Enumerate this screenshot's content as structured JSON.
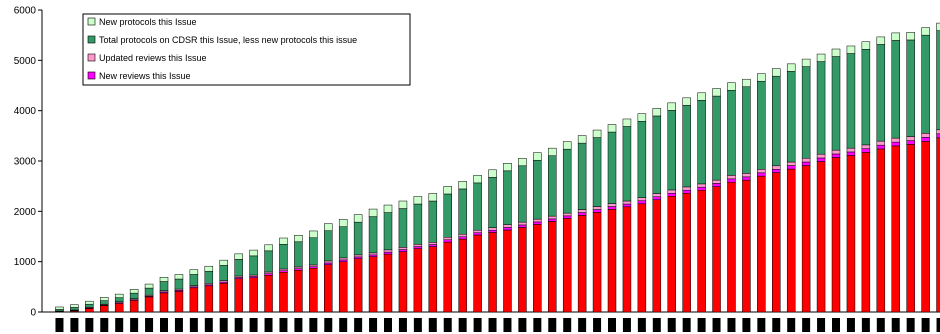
{
  "chart_data": {
    "type": "bar",
    "stacked": true,
    "title": "",
    "xlabel": "",
    "ylabel": "",
    "ylim": [
      0,
      6000
    ],
    "yticks": [
      0,
      1000,
      2000,
      3000,
      4000,
      5000,
      6000
    ],
    "grid": false,
    "legend_position": "top-left",
    "num_categories": 60,
    "series": [
      {
        "name": "New reviews this Issue",
        "color": "#ff00ff",
        "values": [
          10,
          10,
          10,
          10,
          15,
          15,
          15,
          20,
          20,
          20,
          20,
          25,
          25,
          25,
          30,
          30,
          30,
          30,
          35,
          35,
          35,
          35,
          40,
          40,
          40,
          40,
          45,
          45,
          45,
          45,
          50,
          50,
          50,
          50,
          50,
          55,
          55,
          55,
          55,
          60,
          60,
          60,
          60,
          60,
          65,
          65,
          65,
          65,
          65,
          70,
          70,
          70,
          70,
          70,
          75,
          75,
          75,
          75,
          80,
          80
        ]
      },
      {
        "name": "Updated reviews this Issue",
        "color": "#ff99cc",
        "values": [
          10,
          10,
          15,
          15,
          20,
          20,
          20,
          25,
          25,
          25,
          30,
          30,
          30,
          30,
          35,
          35,
          35,
          35,
          40,
          40,
          40,
          40,
          45,
          45,
          45,
          45,
          50,
          50,
          50,
          50,
          55,
          55,
          55,
          55,
          55,
          60,
          60,
          60,
          60,
          60,
          65,
          65,
          65,
          65,
          65,
          70,
          70,
          70,
          70,
          70,
          75,
          75,
          75,
          75,
          75,
          80,
          80,
          80,
          80,
          80
        ]
      },
      {
        "name": "Total protocols on CDSR this Issue, less new protocols this issue",
        "color": "#339966",
        "values": [
          30,
          50,
          60,
          70,
          80,
          110,
          140,
          180,
          200,
          220,
          240,
          300,
          330,
          380,
          420,
          490,
          500,
          540,
          600,
          620,
          650,
          720,
          740,
          770,
          800,
          820,
          860,
          900,
          940,
          1000,
          1070,
          1120,
          1170,
          1200,
          1270,
          1320,
          1370,
          1420,
          1480,
          1520,
          1540,
          1580,
          1620,
          1660,
          1670,
          1690,
          1720,
          1750,
          1780,
          1800,
          1820,
          1840,
          1860,
          1880,
          1900,
          1920,
          1940,
          1920,
          1950,
          1970
        ]
      },
      {
        "name": "New protocols this Issue",
        "color": "#ccffcc",
        "values": [
          50,
          55,
          60,
          65,
          70,
          75,
          80,
          85,
          90,
          95,
          100,
          105,
          110,
          115,
          120,
          125,
          130,
          135,
          140,
          145,
          150,
          150,
          150,
          150,
          150,
          150,
          150,
          150,
          150,
          150,
          150,
          150,
          150,
          150,
          150,
          150,
          150,
          150,
          150,
          150,
          150,
          150,
          150,
          150,
          150,
          150,
          150,
          150,
          150,
          150,
          150,
          150,
          150,
          150,
          150,
          150,
          150,
          150,
          150,
          150
        ]
      },
      {
        "name": "",
        "color": "#ff0000",
        "values": [
          0,
          20,
          70,
          130,
          170,
          230,
          300,
          380,
          410,
          480,
          520,
          570,
          660,
          680,
          730,
          790,
          830,
          870,
          940,
          1000,
          1060,
          1100,
          1150,
          1200,
          1260,
          1300,
          1390,
          1450,
          1530,
          1580,
          1630,
          1680,
          1740,
          1800,
          1860,
          1920,
          1980,
          2040,
          2090,
          2150,
          2230,
          2300,
          2360,
          2420,
          2490,
          2580,
          2620,
          2700,
          2770,
          2840,
          2910,
          2990,
          3070,
          3110,
          3170,
          3240,
          3300,
          3330,
          3390,
          3460
        ]
      }
    ]
  }
}
